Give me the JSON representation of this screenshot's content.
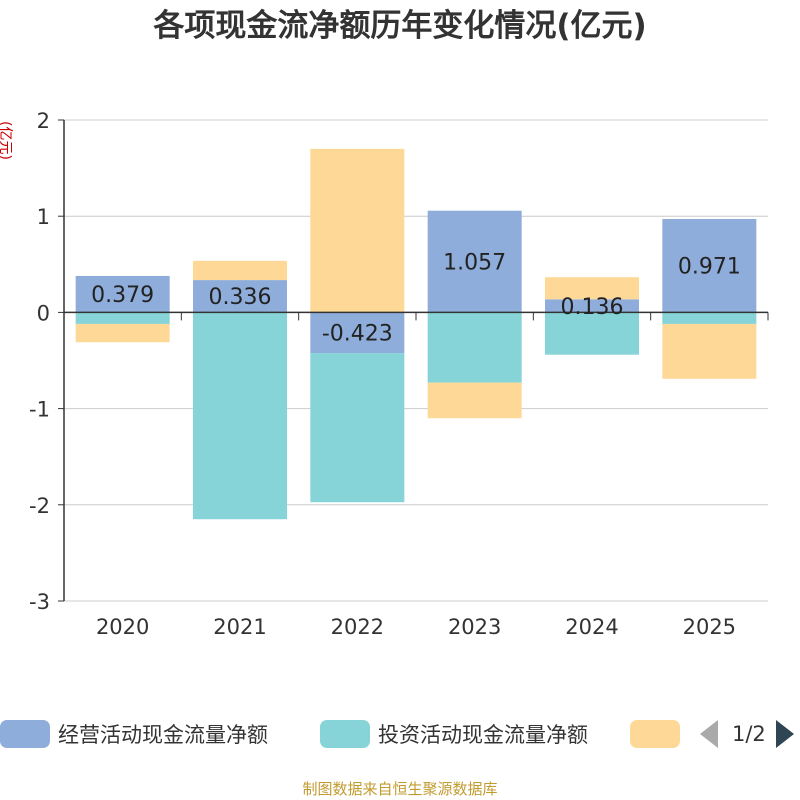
{
  "chart_data": {
    "type": "bar",
    "stacked": true,
    "title": "各项现金流净额历年变化情况(亿元)",
    "ylabel": "(亿元)",
    "xlabel": "",
    "ylim": [
      -3,
      2
    ],
    "yticks": [
      -3,
      -2,
      -1,
      0,
      1,
      2
    ],
    "categories": [
      "2020",
      "2021",
      "2022",
      "2023",
      "2024",
      "2025"
    ],
    "series": [
      {
        "name": "经营活动现金流量净额",
        "color": "#8eadda",
        "values": [
          0.379,
          0.336,
          -0.423,
          1.057,
          0.136,
          0.971
        ],
        "labels": [
          "0.379",
          "0.336",
          "-0.423",
          "1.057",
          "0.136",
          "0.971"
        ]
      },
      {
        "name": "投资活动现金流量净额",
        "color": "#86d4d8",
        "values": [
          -0.12,
          -2.15,
          -1.55,
          -0.73,
          -0.44,
          -0.12
        ]
      },
      {
        "name": "",
        "color": "#fed896",
        "values": [
          -0.19,
          0.2,
          1.7,
          -0.37,
          0.23,
          -0.57
        ]
      }
    ],
    "grid": true,
    "legend_position": "bottom"
  },
  "legend": {
    "pager": "1/2"
  },
  "source": "制图数据来自恒生聚源数据库"
}
